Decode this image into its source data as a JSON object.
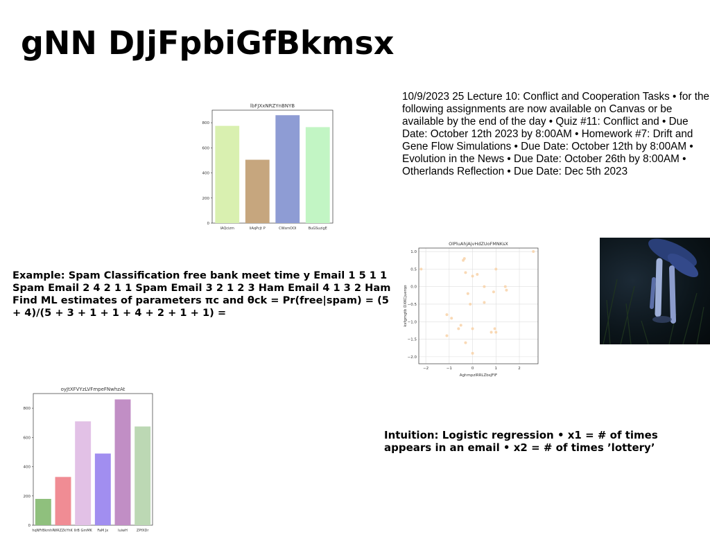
{
  "slide": {
    "title": "gNN DJjFpbiGfBkmsx",
    "text_block_1": "10/9/2023 25 Lecture 10: Conflict and Cooperation Tasks • for the following assignments are now available on Canvas or be available by the end of the day • Quiz #11: Conflict and • Due Date: October 12th 2023 by 8:00AM • Homework #7: Drift and Gene Flow Simulations • Due Date: October 12th by 8:00AM • Evolution in the News • Due Date: October 26th by 8:00AM • Otherlands Reflection • Due Date: Dec 5th 2023",
    "text_block_2": "Example: Spam Classification free bank meet time y Email 1 5 1 1 Spam Email 2 4 2 1 1 Spam Email 3 2 1 2 3 Ham Email 4 1 3 2 Ham Find ML estimates of parameters πc and θck = Pr(free|spam) = (5 + 4)/(5 + 3 + 1 + 1 + 4 + 2 + 1 + 1) =",
    "text_block_3": "Intuition: Logistic regression • x1 = # of times appears in an email • x2 = # of times ’lottery’"
  },
  "chart_data": [
    {
      "type": "bar",
      "title": "lbFJXxNRZYnBNYB",
      "categories": [
        "lAQcizm",
        "liAqPcjt P",
        "CWsmOOI",
        "BuGSuzigE"
      ],
      "values": [
        775,
        505,
        860,
        765
      ],
      "colors": [
        "#d9f0b0",
        "#c6a67e",
        "#8e9cd4",
        "#c2f5c4"
      ],
      "ylim": [
        0,
        900
      ],
      "yticks": [
        0,
        200,
        400,
        600,
        800
      ]
    },
    {
      "type": "scatter",
      "title": "OlPluAhjAjvHdZUoFMNKsX",
      "xlabel": "AghmpzlRRLZbsJFIF",
      "ylabel": "ksfgmgtb DXKCjuerqo",
      "xlim": [
        -2.3,
        2.8
      ],
      "ylim": [
        -2.2,
        1.1
      ],
      "xticks": [
        -2,
        -1,
        0,
        1,
        2
      ],
      "yticks": [
        1.0,
        0.5,
        0.0,
        -0.5,
        -1.0,
        -1.5,
        -2.0
      ],
      "grid": true,
      "color": "#f8d2a8",
      "points": [
        [
          -2.2,
          0.5
        ],
        [
          -1.1,
          -0.8
        ],
        [
          -1.1,
          -1.4
        ],
        [
          -0.9,
          -0.9
        ],
        [
          -0.6,
          -1.2
        ],
        [
          -0.5,
          -1.1
        ],
        [
          -0.4,
          0.75
        ],
        [
          -0.35,
          0.8
        ],
        [
          -0.3,
          0.4
        ],
        [
          -0.3,
          -1.6
        ],
        [
          -0.2,
          -0.2
        ],
        [
          -0.1,
          -0.5
        ],
        [
          0.0,
          0.3
        ],
        [
          0.0,
          -1.2
        ],
        [
          0.0,
          -1.9
        ],
        [
          0.2,
          0.35
        ],
        [
          0.5,
          0.0
        ],
        [
          0.5,
          -0.45
        ],
        [
          0.8,
          -1.3
        ],
        [
          0.9,
          -0.15
        ],
        [
          0.95,
          -1.2
        ],
        [
          1.0,
          0.5
        ],
        [
          1.0,
          -1.3
        ],
        [
          1.4,
          0.0
        ],
        [
          1.45,
          -0.1
        ],
        [
          2.6,
          1.0
        ]
      ]
    },
    {
      "type": "bar",
      "title": "oyJtXFVYzLVFmpeFNwhzAt",
      "categories": [
        "hqNFrBkmhP",
        "WRZZkYhK",
        "lIrB GmMK",
        "FaM Jx",
        "luiwH",
        "ZPfXDr"
      ],
      "values": [
        180,
        330,
        710,
        490,
        860,
        675
      ],
      "colors": [
        "#8fc07d",
        "#f08c94",
        "#e2c1e6",
        "#a18ef0",
        "#c18ec5",
        "#bcd8b4"
      ],
      "ylim": [
        0,
        900
      ],
      "yticks": [
        0,
        200,
        400,
        600,
        800
      ]
    }
  ]
}
